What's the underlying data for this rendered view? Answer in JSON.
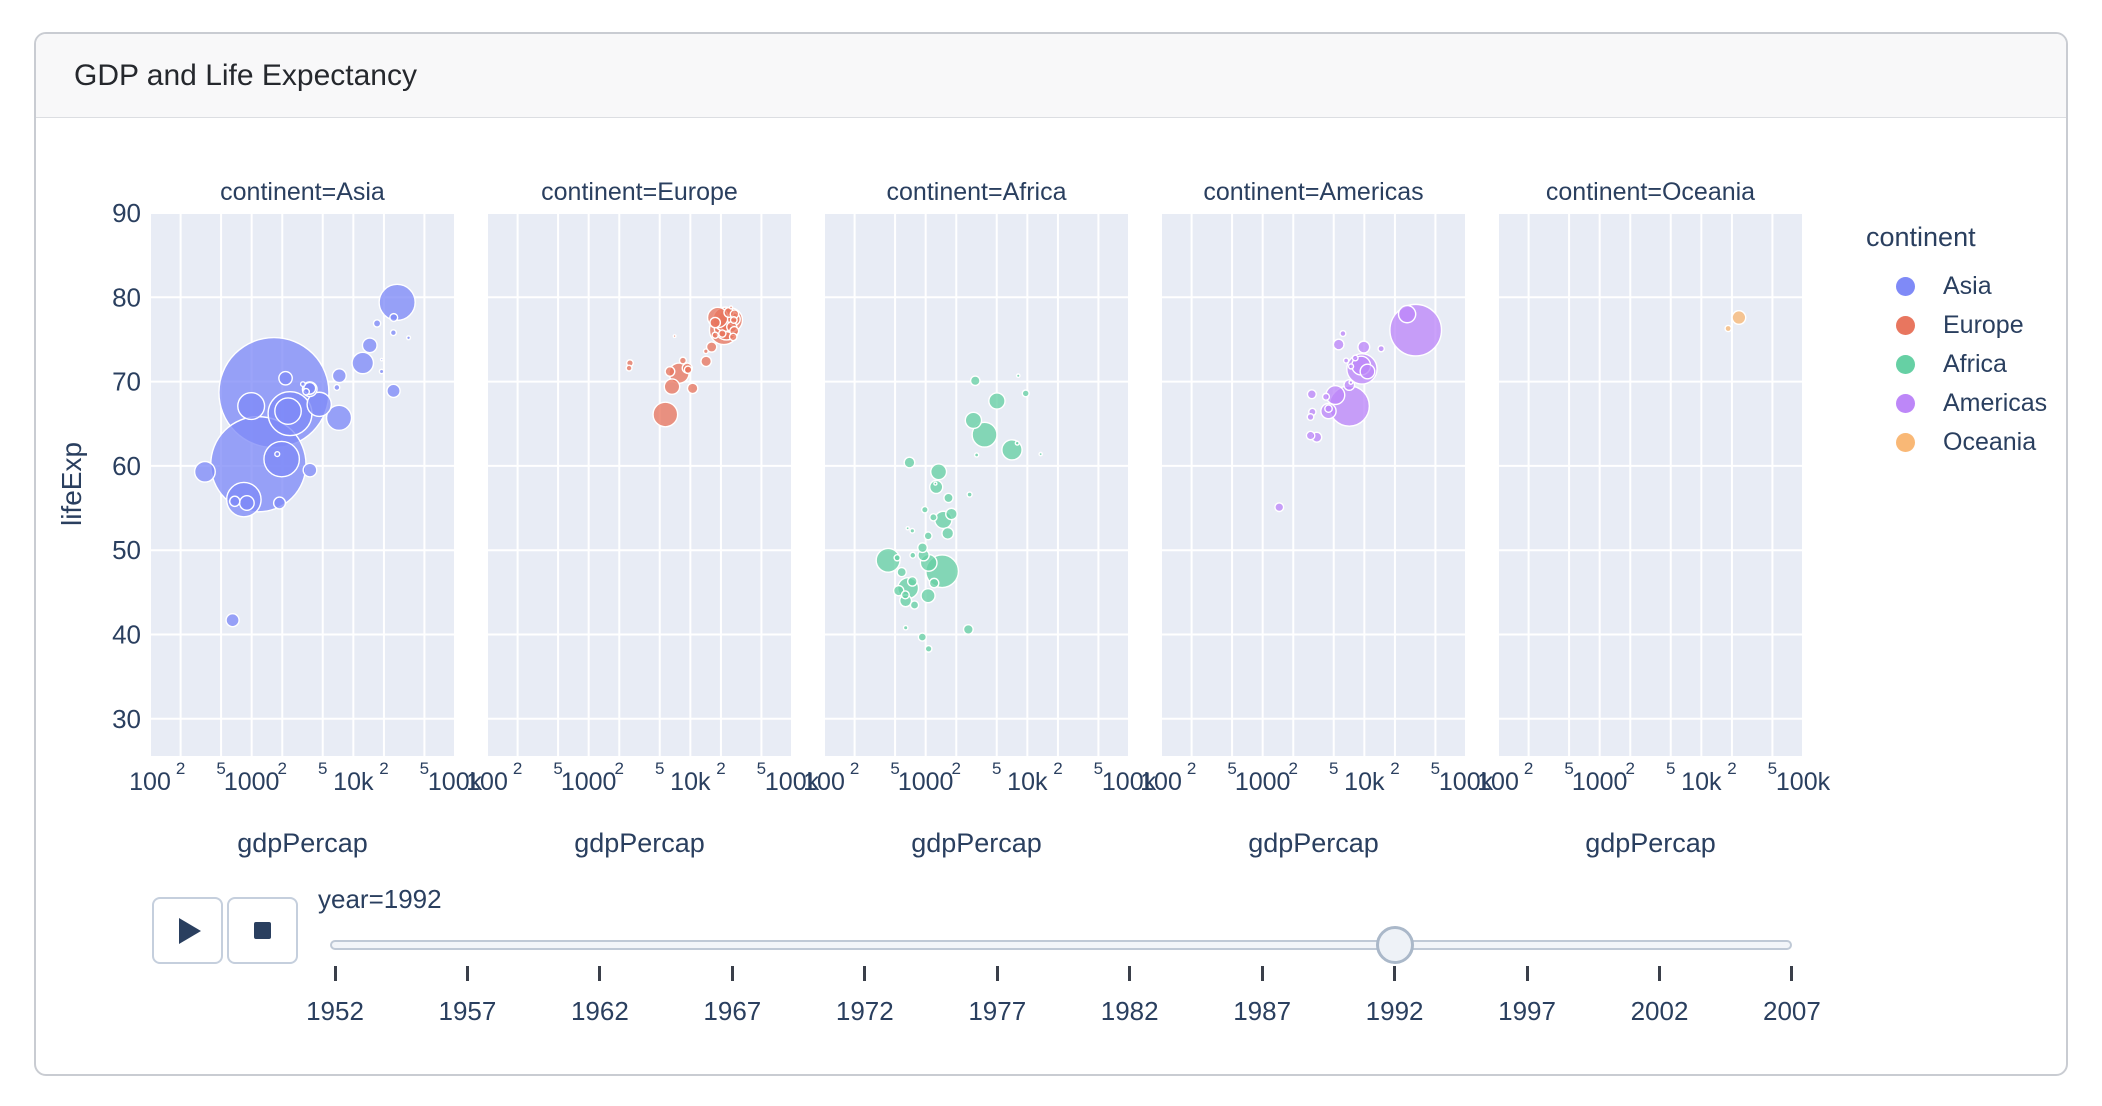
{
  "card": {
    "title": "GDP and Life Expectancy"
  },
  "axes": {
    "x_title": "gdpPercap",
    "y_title": "lifeExp",
    "y_ticks": [
      90,
      80,
      70,
      60,
      50,
      40,
      30
    ],
    "x_major_ticks": [
      {
        "label": "100",
        "log": 2
      },
      {
        "label": "1000",
        "log": 3
      },
      {
        "label": "10k",
        "log": 4
      },
      {
        "label": "100k",
        "log": 5
      }
    ],
    "x_minor_ticks": [
      {
        "label": "2",
        "log": 2.30103
      },
      {
        "label": "5",
        "log": 2.69897
      },
      {
        "label": "2",
        "log": 3.30103
      },
      {
        "label": "5",
        "log": 3.69897
      },
      {
        "label": "2",
        "log": 4.30103
      },
      {
        "label": "5",
        "log": 4.69897
      }
    ]
  },
  "legend": {
    "title": "continent",
    "items": [
      {
        "label": "Asia",
        "color": "#7f8af7"
      },
      {
        "label": "Europe",
        "color": "#e8765f"
      },
      {
        "label": "Africa",
        "color": "#66d0a4"
      },
      {
        "label": "Americas",
        "color": "#bd87f8"
      },
      {
        "label": "Oceania",
        "color": "#f9b876"
      }
    ]
  },
  "controls": {
    "play_icon": "play-icon",
    "stop_icon": "stop-icon"
  },
  "slider": {
    "current_label": "year=1992",
    "current_year": 1992,
    "years": [
      1952,
      1957,
      1962,
      1967,
      1972,
      1977,
      1982,
      1987,
      1992,
      1997,
      2002,
      2007
    ]
  },
  "chart_data": {
    "type": "scatter",
    "subtype": "bubble",
    "x_scale": "log",
    "x_range": [
      100,
      100000
    ],
    "y_range": [
      25.7,
      90
    ],
    "grid": true,
    "panel_bg": "#e8ecf5",
    "gridline_color": "#ffffff",
    "point_format": [
      "gdpPercap",
      "lifeExp",
      "marker_radius_px"
    ],
    "facets": [
      {
        "title": "continent=Asia",
        "continent": "Asia",
        "color": "#7f8af7",
        "points": [
          [
            649,
            41.7,
            6.5
          ],
          [
            26980,
            79.4,
            18
          ],
          [
            24970,
            77.6,
            3.9
          ],
          [
            17120,
            76.9,
            3.6
          ],
          [
            24770,
            75.8,
            2.9
          ],
          [
            34930,
            75.2,
            1.9
          ],
          [
            12380,
            72.2,
            10.7
          ],
          [
            14500,
            74.3,
            7.3
          ],
          [
            18960,
            71.2,
            2.2
          ],
          [
            19040,
            72.6,
            1.2
          ],
          [
            1656,
            68.7,
            55
          ],
          [
            1164,
            60.2,
            47.6
          ],
          [
            2154,
            70.4,
            6.7
          ],
          [
            989,
            67.1,
            13.4
          ],
          [
            3431,
            68.8,
            3.2
          ],
          [
            3726,
            69.2,
            5.9
          ],
          [
            7277,
            70.7,
            6.9
          ],
          [
            4616,
            67.3,
            12.1
          ],
          [
            2383,
            66.2,
            21.9
          ],
          [
            2279,
            66.5,
            13.2
          ],
          [
            7235,
            65.7,
            12.5
          ],
          [
            24840,
            68.9,
            6.6
          ],
          [
            1972,
            60.8,
            17.7
          ],
          [
            347,
            59.3,
            10.3
          ],
          [
            3746,
            59.5,
            6.8
          ],
          [
            838,
            56.0,
            17.2
          ],
          [
            897,
            55.6,
            7.3
          ],
          [
            682,
            55.8,
            5.1
          ],
          [
            1879,
            55.6,
            5.9
          ],
          [
            1785,
            61.4,
            2.4
          ],
          [
            3726,
            69.1,
            7.3
          ],
          [
            6890,
            69.3,
            2.9
          ],
          [
            3193,
            69.7,
            2.3
          ]
        ]
      },
      {
        "title": "continent=Europe",
        "continent": "Europe",
        "color": "#e8765f",
        "points": [
          [
            21350,
            76.1,
            14.4
          ],
          [
            24704,
            77.3,
            12.2
          ],
          [
            22705,
            76.4,
            12.3
          ],
          [
            22014,
            77.4,
            12.1
          ],
          [
            18603,
            77.6,
            10.2
          ],
          [
            26791,
            77.4,
            6.3
          ],
          [
            17541,
            77.0,
            5.2
          ],
          [
            16207,
            74.1,
            5.1
          ],
          [
            14297,
            72.4,
            5.2
          ],
          [
            10536,
            69.2,
            5.2
          ],
          [
            7739,
            71.0,
            10.1
          ],
          [
            6303,
            71.2,
            4.8
          ],
          [
            6598,
            69.4,
            7.7
          ],
          [
            5678,
            66.1,
            12.3
          ],
          [
            2497,
            71.6,
            2.9
          ],
          [
            2547,
            72.2,
            3.3
          ],
          [
            9325,
            71.6,
            5.0
          ],
          [
            8448,
            72.5,
            3.4
          ],
          [
            27195,
            78.0,
            4.2
          ],
          [
            23880,
            78.2,
            4.8
          ],
          [
            26747,
            77.3,
            3.3
          ],
          [
            27042,
            76.0,
            4.5
          ],
          [
            25576,
            76.5,
            5.1
          ],
          [
            26407,
            75.3,
            3.7
          ],
          [
            20647,
            75.7,
            3.6
          ],
          [
            17559,
            75.5,
            3.1
          ],
          [
            25144,
            78.8,
            1.5
          ],
          [
            14214,
            73.6,
            2.3
          ],
          [
            9498,
            71.4,
            3.7
          ],
          [
            7003,
            75.4,
            1.3
          ]
        ]
      },
      {
        "title": "continent=Africa",
        "continent": "Africa",
        "color": "#66d0a4",
        "points": [
          [
            5023,
            67.7,
            8.1
          ],
          [
            2628,
            40.6,
            4.8
          ],
          [
            1191,
            53.9,
            3.6
          ],
          [
            7954,
            62.7,
            1.9
          ],
          [
            931,
            50.3,
            4.8
          ],
          [
            631,
            44.7,
            3.9
          ],
          [
            1793,
            54.3,
            5.7
          ],
          [
            747,
            49.4,
            2.9
          ],
          [
            1058,
            51.7,
            3.9
          ],
          [
            1247,
            57.9,
            1.5
          ],
          [
            672,
            45.5,
            10.4
          ],
          [
            2705,
            56.6,
            2.5
          ],
          [
            1648,
            52.0,
            5.8
          ],
          [
            3794,
            63.7,
            12.4
          ],
          [
            525,
            49.1,
            3.1
          ],
          [
            427,
            48.8,
            11.9
          ],
          [
            13522,
            61.4,
            1.6
          ],
          [
            665,
            52.6,
            1.6
          ],
          [
            1270,
            57.5,
            6.5
          ],
          [
            777,
            43.5,
            4.1
          ],
          [
            1341,
            59.3,
            7.9
          ],
          [
            636,
            40.8,
            2.2
          ],
          [
            9640,
            68.6,
            3.4
          ],
          [
            953,
            49.4,
            5.6
          ],
          [
            543,
            45.2,
            5.1
          ],
          [
            740,
            46.3,
            4.7
          ],
          [
            739,
            52.3,
            2.3
          ],
          [
            8140,
            70.7,
            1.7
          ],
          [
            2948,
            65.4,
            8.1
          ],
          [
            635,
            44.0,
            5.9
          ],
          [
            3173,
            61.3,
            2.0
          ],
          [
            581,
            47.4,
            4.6
          ],
          [
            1452,
            47.5,
            16.3
          ],
          [
            1677,
            56.2,
            4.6
          ],
          [
            1069,
            38.3,
            3.3
          ],
          [
            927,
            39.7,
            4.0
          ],
          [
            7062,
            61.9,
            10.1
          ],
          [
            1492,
            53.6,
            8.6
          ],
          [
            1071,
            48.5,
            8.3
          ],
          [
            982,
            54.8,
            3.2
          ],
          [
            3075,
            70.1,
            4.7
          ],
          [
            1056,
            44.6,
            7.0
          ],
          [
            1210,
            46.1,
            4.7
          ],
          [
            693,
            60.4,
            5.3
          ]
        ]
      },
      {
        "title": "continent=Americas",
        "continent": "Americas",
        "color": "#bd87f8",
        "points": [
          [
            32003,
            76.1,
            25.8
          ],
          [
            26343,
            78.0,
            8.6
          ],
          [
            9472,
            71.5,
            15.1
          ],
          [
            7105,
            67.1,
            20.1
          ],
          [
            9308,
            71.9,
            9.4
          ],
          [
            5185,
            68.4,
            9.4
          ],
          [
            10733,
            71.2,
            7.3
          ],
          [
            4439,
            66.5,
            7.6
          ],
          [
            9880,
            74.1,
            5.9
          ],
          [
            7103,
            69.6,
            5.3
          ],
          [
            3408,
            63.4,
            4.9
          ],
          [
            5592,
            74.4,
            5.3
          ],
          [
            3044,
            68.5,
            4.4
          ],
          [
            1456,
            55.1,
            4.3
          ],
          [
            2961,
            63.6,
            4.2
          ],
          [
            3081,
            66.4,
            3.6
          ],
          [
            4196,
            68.2,
            3.4
          ],
          [
            4444,
            66.8,
            3.7
          ],
          [
            2955,
            65.8,
            3.3
          ],
          [
            6160,
            75.7,
            2.9
          ],
          [
            6619,
            72.5,
            2.5
          ],
          [
            8137,
            72.8,
            2.8
          ],
          [
            7404,
            71.8,
            2.5
          ],
          [
            7370,
            69.9,
            1.8
          ],
          [
            14641,
            73.9,
            3.1
          ]
        ]
      },
      {
        "title": "continent=Oceania",
        "continent": "Oceania",
        "color": "#f9b876",
        "points": [
          [
            23424,
            77.6,
            6.8
          ],
          [
            18363,
            76.3,
            3.1
          ]
        ]
      }
    ]
  }
}
